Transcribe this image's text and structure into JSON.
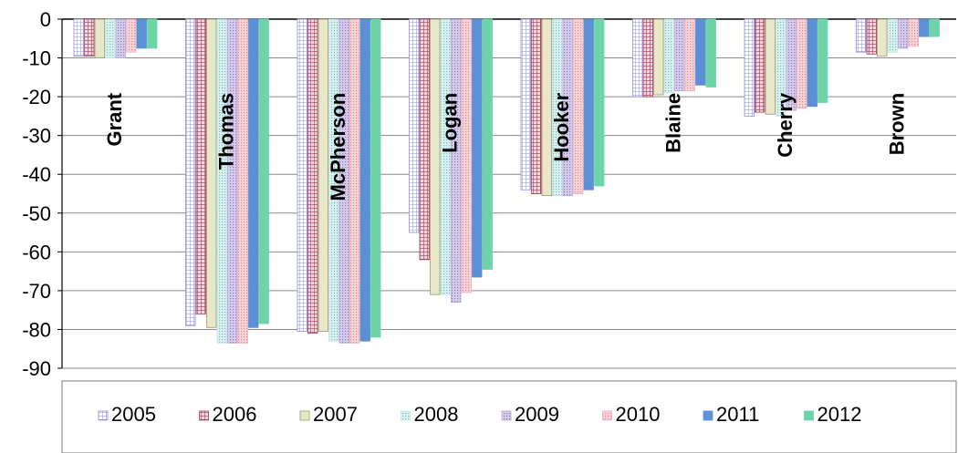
{
  "chart_data": {
    "type": "bar",
    "title": "",
    "xlabel": "",
    "ylabel": "",
    "ylim": [
      -90,
      0
    ],
    "yticks": [
      0,
      -10,
      -20,
      -30,
      -40,
      -50,
      -60,
      -70,
      -80,
      -90
    ],
    "grid": true,
    "legend_position": "bottom",
    "categories": [
      "Grant",
      "Thomas",
      "McPherson",
      "Logan",
      "Hooker",
      "Blaine",
      "Cherry",
      "Brown"
    ],
    "series": [
      {
        "name": "2005",
        "color": "#8f8fd8",
        "pattern": "grid",
        "values": [
          -9.5,
          -79,
          -80.5,
          -55,
          -44,
          -20,
          -25,
          -8.5
        ]
      },
      {
        "name": "2006",
        "color": "#a0405e",
        "pattern": "crosshatch",
        "values": [
          -9.5,
          -76,
          -81,
          -62,
          -45,
          -20,
          -24,
          -9
        ]
      },
      {
        "name": "2007",
        "color": "#e8e8c8",
        "pattern": "solid",
        "values": [
          -10,
          -79.5,
          -80.5,
          -71,
          -45.5,
          -19.5,
          -24.5,
          -9.5
        ]
      },
      {
        "name": "2008",
        "color": "#bfe6e6",
        "pattern": "dots",
        "values": [
          -10,
          -83.5,
          -83,
          -71,
          -45.5,
          -19,
          -25,
          -8.5
        ]
      },
      {
        "name": "2009",
        "color": "#b8a8d8",
        "pattern": "dots",
        "values": [
          -10,
          -83.5,
          -83.5,
          -73,
          -45.5,
          -18.5,
          -23.5,
          -7.5
        ]
      },
      {
        "name": "2010",
        "color": "#f0b0b8",
        "pattern": "dots",
        "values": [
          -8.5,
          -83.5,
          -83.5,
          -70.5,
          -45,
          -18.5,
          -23,
          -7
        ]
      },
      {
        "name": "2011",
        "color": "#5b8fd6",
        "pattern": "solid",
        "values": [
          -7.5,
          -79.5,
          -83,
          -66.5,
          -44,
          -17,
          -22.5,
          -4.5
        ]
      },
      {
        "name": "2012",
        "color": "#6ed4a8",
        "pattern": "solid",
        "values": [
          -7.5,
          -78.5,
          -82,
          -64.5,
          -43,
          -17.5,
          -21.5,
          -4.5
        ]
      }
    ]
  }
}
